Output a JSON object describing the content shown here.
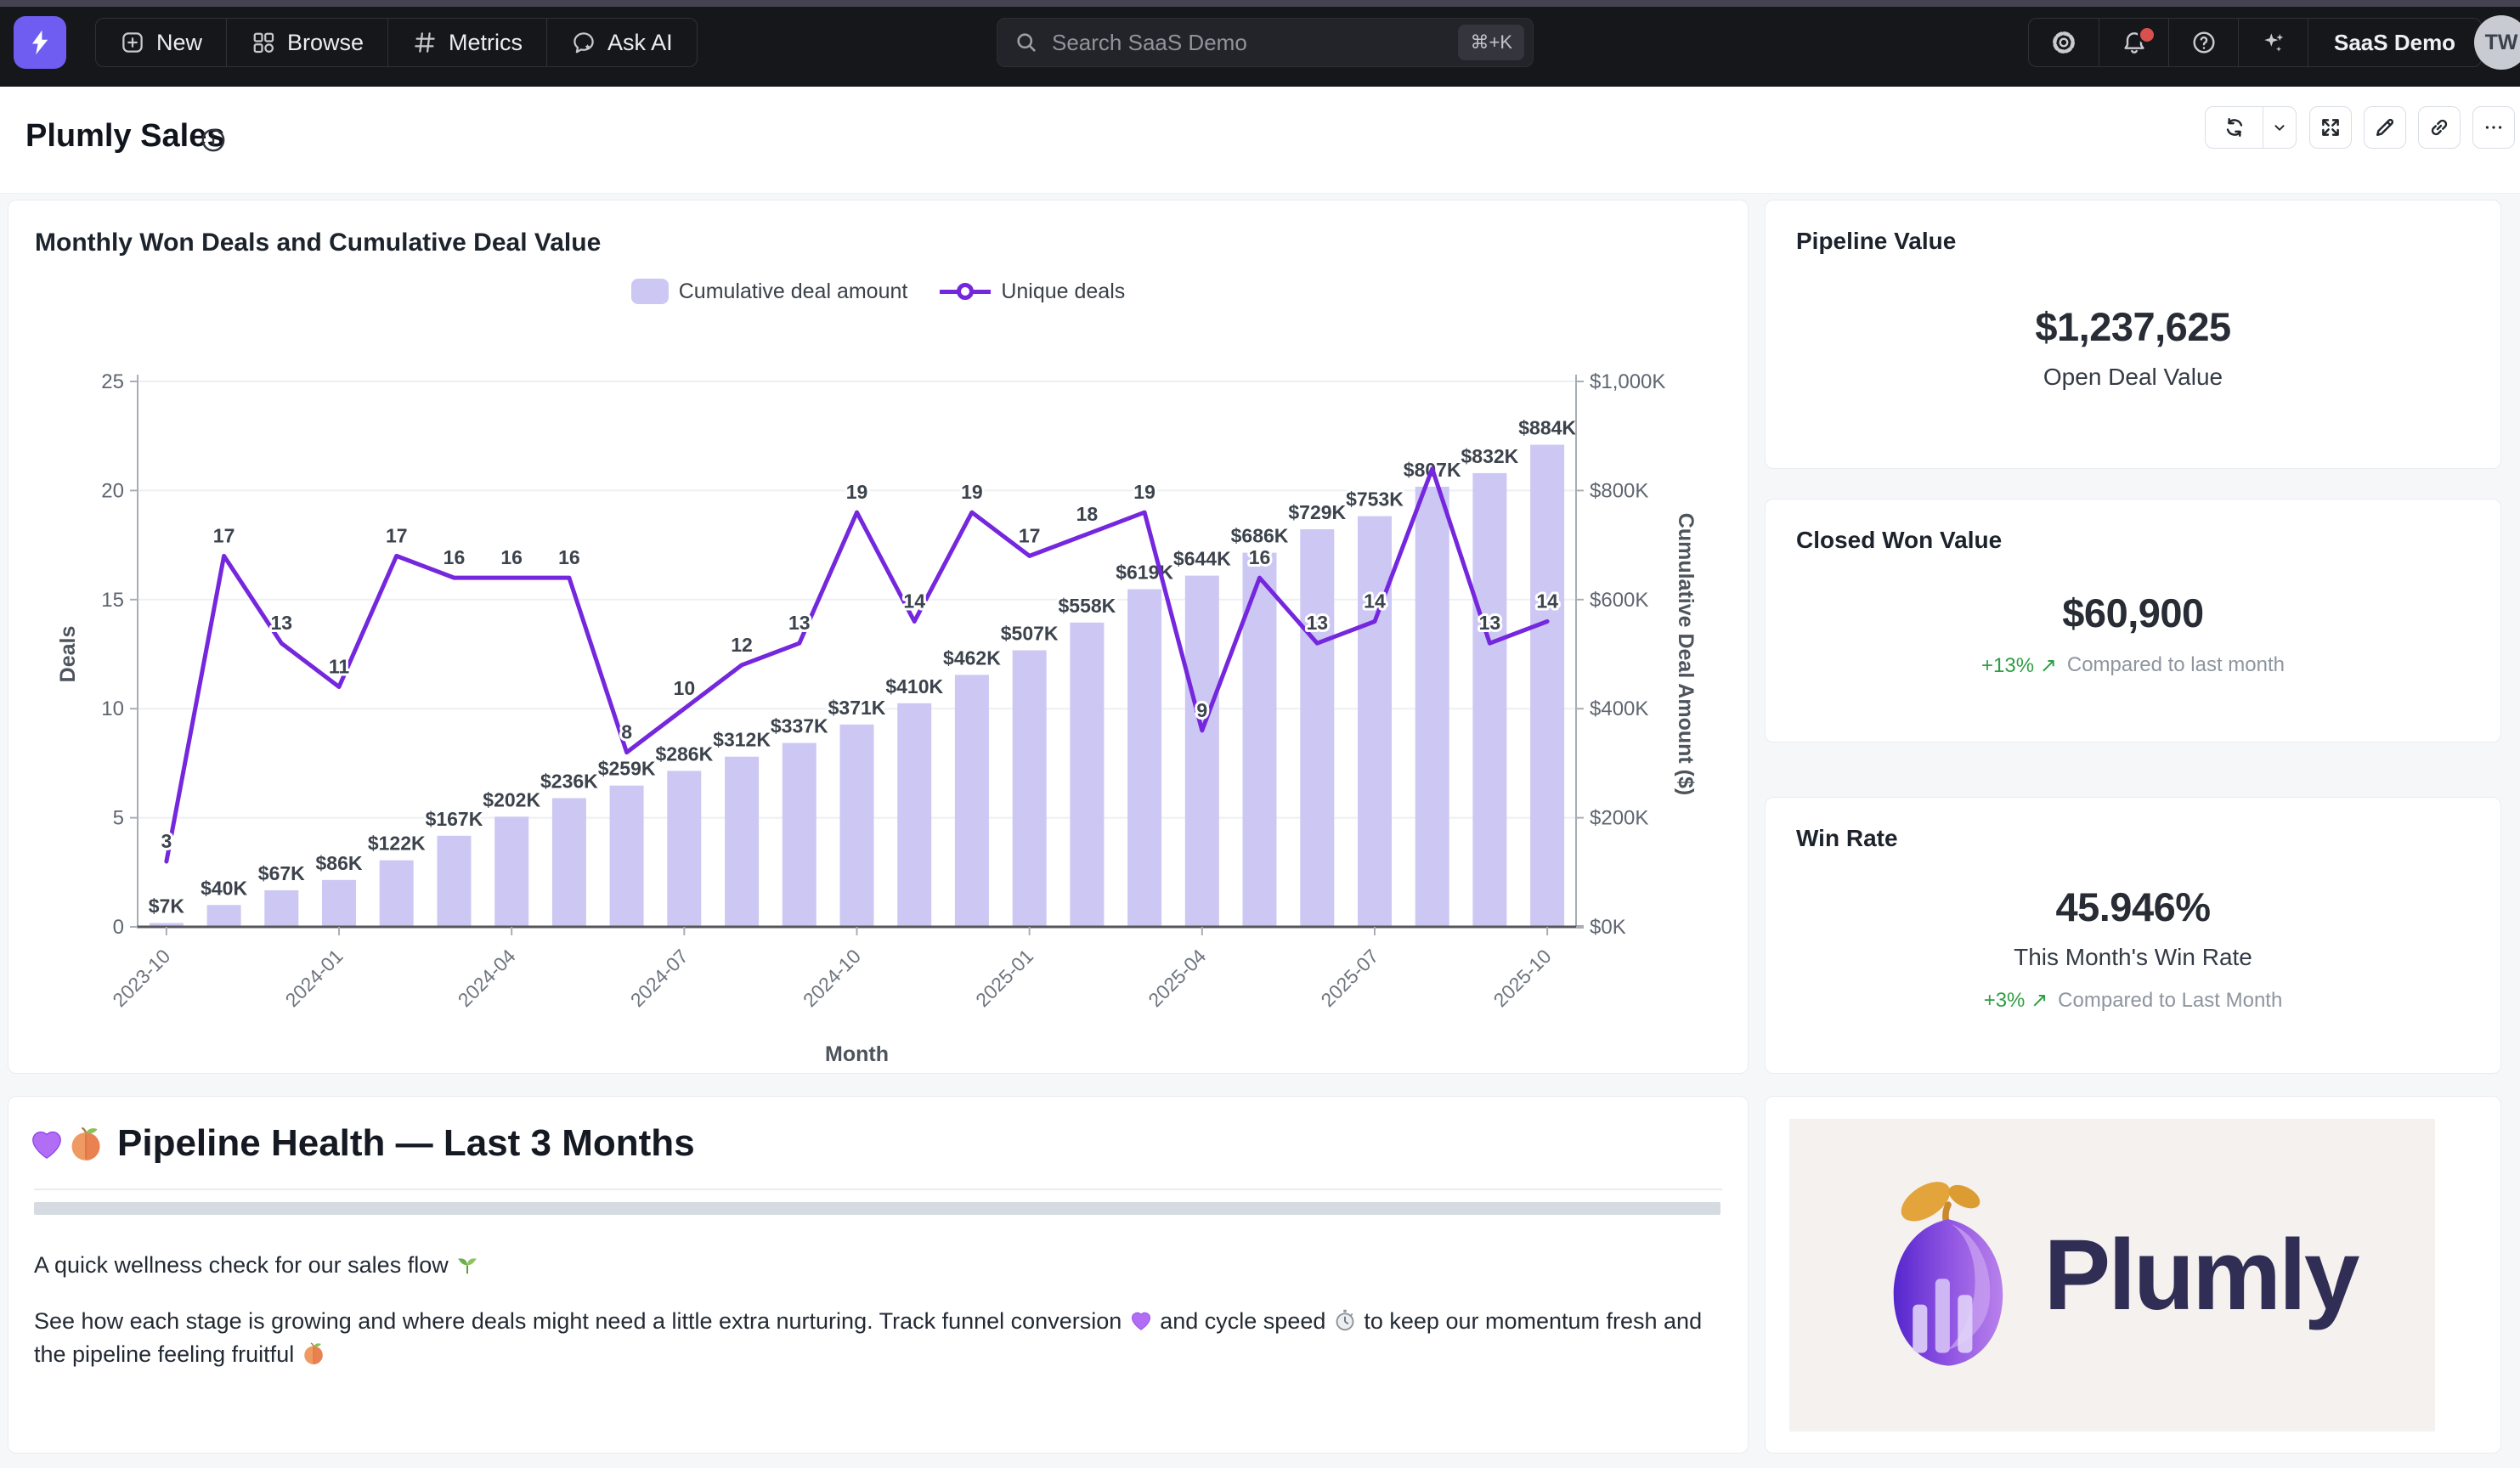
{
  "nav": {
    "items": [
      {
        "label": "New",
        "icon": "plus-square-icon"
      },
      {
        "label": "Browse",
        "icon": "grid-icon"
      },
      {
        "label": "Metrics",
        "icon": "hash-icon"
      },
      {
        "label": "Ask AI",
        "icon": "chat-star-icon"
      }
    ],
    "search": {
      "placeholder": "Search SaaS Demo",
      "shortcut": "⌘+K"
    },
    "workspace": "SaaS Demo",
    "avatar_initials": "TW"
  },
  "header": {
    "title": "Plumly Sales"
  },
  "chart": {
    "legend": [
      {
        "label": "Cumulative deal amount"
      },
      {
        "label": "Unique deals"
      }
    ]
  },
  "chart_data": {
    "type": "bar+line",
    "title": "Monthly Won Deals and Cumulative Deal Value",
    "categories": [
      "2023-10",
      "2023-11",
      "2023-12",
      "2024-01",
      "2024-02",
      "2024-03",
      "2024-04",
      "2024-05",
      "2024-06",
      "2024-07",
      "2024-08",
      "2024-09",
      "2024-10",
      "2024-11",
      "2024-12",
      "2025-01",
      "2025-02",
      "2025-03",
      "2025-04",
      "2025-05",
      "2025-06",
      "2025-07",
      "2025-08",
      "2025-09",
      "2025-10"
    ],
    "series": [
      {
        "name": "Cumulative deal amount",
        "type": "bar",
        "yaxis": "right",
        "unit": "$K",
        "values": [
          7,
          40,
          67,
          86,
          122,
          167,
          202,
          236,
          259,
          286,
          312,
          337,
          371,
          410,
          462,
          507,
          558,
          619,
          644,
          686,
          729,
          753,
          807,
          832,
          884
        ]
      },
      {
        "name": "Unique deals",
        "type": "line",
        "yaxis": "left",
        "values": [
          3,
          17,
          13,
          11,
          17,
          16,
          16,
          16,
          8,
          10,
          12,
          13,
          19,
          14,
          19,
          17,
          18,
          19,
          9,
          16,
          13,
          14,
          21,
          13,
          14
        ],
        "hidden_label_indexes": [
          22
        ]
      }
    ],
    "xlabel": "Month",
    "x_tick_labels": [
      "2023-10",
      "2024-01",
      "2024-04",
      "2024-07",
      "2024-10",
      "2025-01",
      "2025-04",
      "2025-07",
      "2025-10"
    ],
    "left_axis": {
      "title": "Deals",
      "min": 0,
      "max": 25,
      "ticks": [
        0,
        5,
        10,
        15,
        20,
        25
      ]
    },
    "right_axis": {
      "title": "Cumulative Deal Amount ($)",
      "min": 0,
      "max": 1000,
      "tick_labels": [
        "$0K",
        "$200K",
        "$400K",
        "$600K",
        "$800K",
        "$1,000K"
      ]
    },
    "bar_color": "#cdc7f4",
    "line_color": "#7527dd",
    "grid": true,
    "legend_position": "top"
  },
  "kpis": [
    {
      "title": "Pipeline Value",
      "value": "$1,237,625",
      "subtitle": "Open Deal Value"
    },
    {
      "title": "Closed Won Value",
      "value": "$60,900",
      "change": "+13%",
      "arrow": "↗",
      "note": "Compared to last month"
    },
    {
      "title": "Win Rate",
      "value": "45.946%",
      "subtitle": "This Month's Win Rate",
      "change": "+3%",
      "arrow": "↗",
      "note": "Compared to Last Month"
    }
  ],
  "pipeline_health": {
    "heading": "Pipeline Health — Last 3 Months",
    "heading_emojis": [
      "purple-heart",
      "peach"
    ],
    "paragraphs": [
      [
        {
          "t": "A quick wellness check for our sales flow "
        },
        {
          "icon": "herb"
        }
      ],
      [
        {
          "t": "See how each stage is growing and where deals might need a little extra nurturing. Track funnel conversion "
        },
        {
          "icon": "purple-heart"
        },
        {
          "t": " and cycle speed "
        },
        {
          "icon": "stopwatch"
        },
        {
          "t": " to keep our momentum fresh and the pipeline feeling fruitful "
        },
        {
          "icon": "peach"
        }
      ]
    ]
  },
  "brand_card": {
    "wordmark": "Plumly"
  },
  "colors": {
    "nav_bg": "#16171a",
    "accent_purple": "#7527dd",
    "bar_lavender": "#cdc7f4",
    "positive_green": "#2f9e44",
    "badge_red": "#d9504e",
    "brand_bg": "#f5f1ee"
  }
}
